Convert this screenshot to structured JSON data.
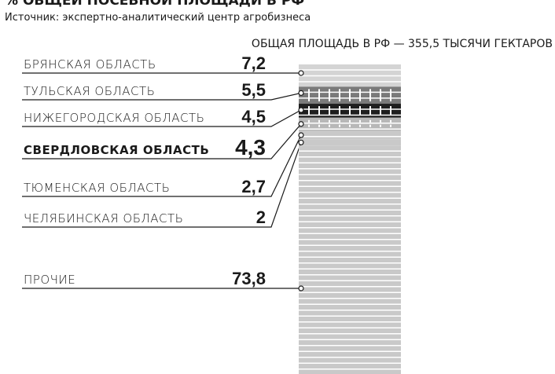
{
  "chart_data": {
    "type": "bar",
    "title": "% ОБЩЕЙ ПОСЕВНОЙ ПЛОЩАДИ В РФ",
    "source": "Источник: экспертно-аналитический центр агробизнеса",
    "total_label": "ОБЩАЯ ПЛОЩАДЬ В РФ — 355,5 ТЫСЯЧИ ГЕКТАРОВ",
    "categories": [
      "БРЯНСКАЯ ОБЛАСТЬ",
      "ТУЛЬСКАЯ ОБЛАСТЬ",
      "НИЖЕГОРОДСКАЯ ОБЛАСТЬ",
      "СВЕРДЛОВСКАЯ ОБЛАСТЬ",
      "ТЮМЕНСКАЯ ОБЛАСТЬ",
      "ЧЕЛЯБИНСКАЯ ОБЛАСТЬ",
      "ПРОЧИЕ"
    ],
    "values": [
      7.2,
      5.5,
      4.5,
      4.3,
      2.7,
      2,
      73.8
    ],
    "value_labels": [
      "7,2",
      "5,5",
      "4,5",
      "4,3",
      "2,7",
      "2",
      "73,8"
    ],
    "colors": [
      "#d4d4d4",
      "#7a7a7a",
      "#1e1e1e",
      "#b8b8b8",
      "#c9c9c9",
      "#c9c9c9",
      "#c9c9c9"
    ],
    "highlight": 3
  }
}
